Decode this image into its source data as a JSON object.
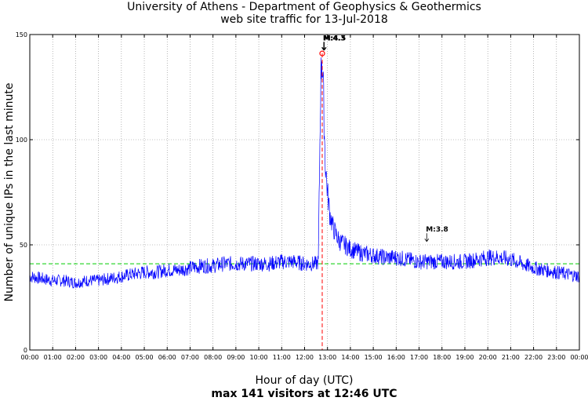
{
  "chart_data": {
    "type": "line",
    "title": "University of Athens - Department of Geophysics & Geothermics",
    "subtitle": "web site traffic for 13-Jul-2018",
    "xlabel": "Hour of day (UTC)",
    "ylabel": "Number of unique IPs in the last minute",
    "footer": "max 141 visitors at 12:46 UTC",
    "xlim": [
      0,
      24
    ],
    "ylim": [
      0,
      150
    ],
    "yticks": [
      "0",
      "50",
      "100",
      "150"
    ],
    "xticks": [
      "00:00",
      "01:00",
      "02:00",
      "03:00",
      "04:00",
      "05:00",
      "06:00",
      "07:00",
      "08:00",
      "09:00",
      "10:00",
      "11:00",
      "12:00",
      "13:00",
      "14:00",
      "15:00",
      "16:00",
      "17:00",
      "18:00",
      "19:00",
      "20:00",
      "21:00",
      "22:00",
      "23:00",
      "00:00"
    ],
    "grid": true,
    "series": [
      {
        "color": "#0000ff",
        "x": [
          0,
          0.5,
          1,
          1.5,
          2,
          2.5,
          3,
          3.5,
          4,
          4.5,
          5,
          5.5,
          6,
          6.5,
          7,
          7.5,
          8,
          8.5,
          9,
          9.5,
          10,
          10.5,
          11,
          11.5,
          12,
          12.5,
          12.6,
          12.7,
          12.75,
          12.8,
          12.85,
          12.9,
          13,
          13.1,
          13.25,
          13.5,
          13.75,
          14,
          14.5,
          15,
          15.5,
          16,
          16.5,
          17,
          17.5,
          18,
          18.5,
          19,
          19.5,
          20,
          20.5,
          21,
          21.5,
          22,
          22.5,
          23,
          23.5,
          24
        ],
        "values": [
          35,
          34,
          33,
          33,
          32,
          33,
          33,
          34,
          35,
          36,
          37,
          37,
          38,
          38,
          39,
          40,
          40,
          41,
          41,
          41,
          41,
          41,
          42,
          42,
          41,
          41,
          42,
          125,
          141,
          130,
          110,
          90,
          75,
          65,
          58,
          52,
          50,
          48,
          46,
          45,
          44,
          44,
          43,
          42,
          42,
          42,
          42,
          42,
          43,
          44,
          44,
          43,
          41,
          39,
          38,
          37,
          36,
          35
        ]
      }
    ],
    "mean_line": {
      "value": 41,
      "color": "#00cc00"
    },
    "peak_marker": {
      "x": 12.77,
      "y": 141,
      "color": "#ff0000"
    },
    "annotations": [
      {
        "label": "M:4.3",
        "x": 12.8,
        "y": 148
      },
      {
        "label": "M:4.5",
        "x": 12.83,
        "y": 148
      },
      {
        "label": "M:3.8",
        "x": 17.3,
        "y": 57
      }
    ]
  }
}
